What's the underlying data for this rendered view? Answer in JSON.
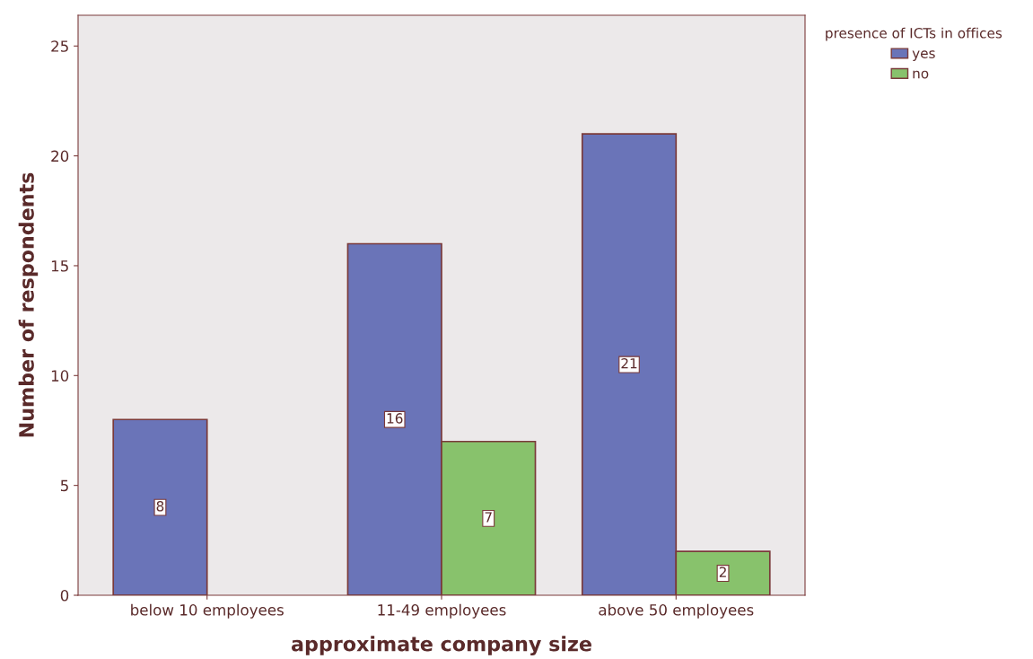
{
  "chart_data": {
    "type": "bar",
    "xlabel": "approximate company size",
    "ylabel": "Number of respondents",
    "legend_title": "presence of ICTs in offices",
    "categories": [
      "below 10 employees",
      "11-49 employees",
      "above 50 employees"
    ],
    "series": [
      {
        "name": "yes",
        "color": "#6a74b8",
        "values": [
          8,
          16,
          21
        ]
      },
      {
        "name": "no",
        "color": "#88c26c",
        "values": [
          null,
          7,
          2
        ]
      }
    ],
    "ylim": [
      0,
      26.4
    ],
    "yticks": [
      0,
      5,
      10,
      15,
      20,
      25
    ],
    "grid": false,
    "legend": "top right",
    "data_labels": true
  }
}
